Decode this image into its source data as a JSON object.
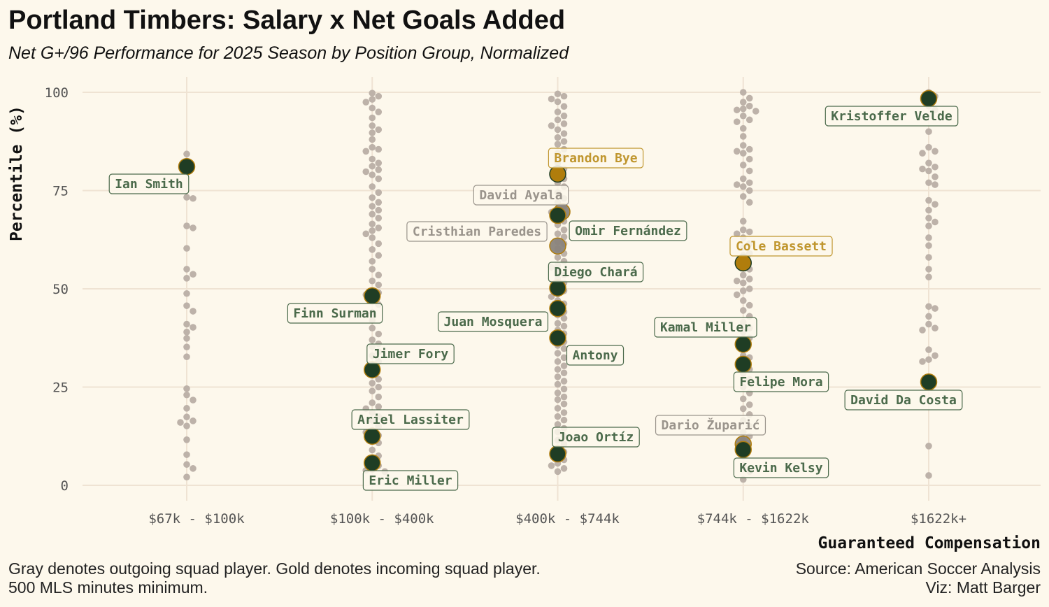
{
  "chart_data": {
    "type": "scatter",
    "title": "Portland Timbers: Salary x Net Goals Added",
    "subtitle": "Net G+/96 Performance for 2025 Season by Position Group, Normalized",
    "xlabel": "Guaranteed Compensation",
    "ylabel": "Percentile (%)",
    "categories": [
      "$67k - $100k",
      "$100k - $400k",
      "$400k - $744k",
      "$744k - $1622k",
      "$1622k+"
    ],
    "ylim": [
      0,
      100
    ],
    "yticks": [
      0,
      25,
      50,
      75,
      100
    ],
    "grid": true,
    "colors": {
      "background": "#fdf8ec",
      "league": "#bdb2a9",
      "current": "#1f3d24",
      "current_text": "#4b6a4b",
      "incoming": "#b07d0c",
      "incoming_text": "#c0962e",
      "outgoing": "#8a847c",
      "outgoing_text": "#9a948c",
      "grid": "#efe3d3"
    },
    "league_players": [
      [
        84.3,
        82.5,
        73.3,
        73,
        66,
        65.5,
        60.3,
        55,
        53.7,
        52.7,
        48.8,
        45.7,
        44.3,
        41,
        40.2,
        39,
        37.4,
        35.2,
        32.7,
        24.6,
        23,
        21.7,
        19.6,
        17.4,
        16.4,
        16,
        15.1,
        11.6,
        7.8,
        5.3,
        4.3,
        2.1
      ],
      [
        99.8,
        99,
        98.2,
        97.5,
        96,
        95,
        93.5,
        91.5,
        90.5,
        89.7,
        88,
        86,
        85.5,
        85,
        83,
        82,
        81.2,
        80.3,
        79.8,
        79,
        78,
        76,
        74.5,
        73.2,
        72,
        71,
        70,
        69,
        68,
        66.5,
        65.5,
        64.8,
        64,
        63,
        61.5,
        60,
        58.5,
        57,
        55,
        53.5,
        52,
        51,
        49.5,
        49,
        48.5,
        47,
        46,
        44,
        42,
        40,
        38.5,
        37,
        36,
        35.3,
        34,
        33,
        31.5,
        30.5,
        28,
        27,
        26,
        25,
        24,
        22.5,
        21,
        20,
        19.5,
        18.5,
        17.5,
        16.5,
        15,
        14,
        13.5,
        12.7,
        12,
        10.8,
        9,
        7.5,
        6.5,
        5,
        4,
        3.8,
        3.5
      ],
      [
        99.6,
        99,
        98.3,
        97.6,
        96.4,
        95,
        94,
        93,
        92,
        91.5,
        90.5,
        89.5,
        88.5,
        87.5,
        86.8,
        85.5,
        84.5,
        83.5,
        82,
        80.5,
        79.5,
        78,
        77,
        76,
        74.5,
        73,
        72,
        71,
        70,
        69.5,
        68,
        67.2,
        66.3,
        65,
        64,
        63.2,
        62,
        61.5,
        60.2,
        59,
        58,
        57,
        56,
        55.5,
        54.3,
        53.5,
        52.5,
        51.5,
        50.8,
        49.5,
        48.7,
        48,
        47,
        46.2,
        45.3,
        44.1,
        43.3,
        42.5,
        41.2,
        40.5,
        39.5,
        38.6,
        37.6,
        36.5,
        35.6,
        34.8,
        33.6,
        32.5,
        31.5,
        30.4,
        29.5,
        28.6,
        27.6,
        26.5,
        25.7,
        24.5,
        23.5,
        22.5,
        21.8,
        20.7,
        19.6,
        18.5,
        17.5,
        16.6,
        15.5,
        14.5,
        13.6,
        12.5,
        11.5,
        10.5,
        9.5,
        8.5,
        7.5,
        6.5,
        5.6,
        5,
        4.3,
        3.5
      ],
      [
        100,
        98.5,
        97.5,
        96.5,
        95.8,
        95.5,
        95.2,
        94,
        93,
        92.5,
        90.8,
        88.8,
        86.5,
        85.5,
        85,
        84.5,
        83,
        81.5,
        80,
        78,
        77,
        76.5,
        76,
        75,
        73.5,
        72,
        67.2,
        65,
        64.5,
        64,
        63,
        61.5,
        60.5,
        59,
        58.5,
        56.5,
        55,
        53.5,
        52.5,
        52,
        51.5,
        50,
        49.5,
        48.5,
        47,
        45.8,
        44.5,
        43,
        41.5,
        40,
        39,
        37.5,
        35.5,
        33,
        32.5,
        31,
        29.5,
        28.5,
        27,
        25,
        23.5,
        22,
        20.5,
        19.5,
        18,
        16.5,
        15,
        13.5,
        12.5,
        11.5,
        7.5,
        5,
        3.5,
        1.5
      ],
      [
        100,
        99,
        96.5,
        95.5,
        90,
        86,
        85,
        84.5,
        82,
        81,
        80.5,
        80,
        78.5,
        77,
        76.5,
        72.5,
        71.5,
        70,
        68,
        67,
        66,
        63,
        61,
        58,
        55,
        53,
        45.5,
        45,
        43,
        41,
        40,
        39.5,
        34.5,
        33,
        32,
        31.5,
        26.5,
        10,
        2.5
      ]
    ],
    "highlighted_players": [
      {
        "name": "Ian Smith",
        "category": "$67k - $100k",
        "percentile": 81.1,
        "status": "current"
      },
      {
        "name": "Finn Surman",
        "category": "$100k - $400k",
        "percentile": 48.2,
        "status": "current"
      },
      {
        "name": "Jimer Fory",
        "category": "$100k - $400k",
        "percentile": 29.4,
        "status": "current"
      },
      {
        "name": "Ariel Lassiter",
        "category": "$100k - $400k",
        "percentile": 12.5,
        "status": "current"
      },
      {
        "name": "Eric Miller",
        "category": "$100k - $400k",
        "percentile": 5.7,
        "status": "current"
      },
      {
        "name": "Brandon Bye",
        "category": "$400k - $744k",
        "percentile": 79.2,
        "status": "incoming"
      },
      {
        "name": "David Ayala",
        "category": "$400k - $744k",
        "percentile": 69.6,
        "status": "outgoing"
      },
      {
        "name": "Omir Fernández",
        "category": "$400k - $744k",
        "percentile": 68.7,
        "status": "current"
      },
      {
        "name": "Cristhian Paredes",
        "category": "$400k - $744k",
        "percentile": 60.9,
        "status": "outgoing"
      },
      {
        "name": "Diego Chará",
        "category": "$400k - $744k",
        "percentile": 50.2,
        "status": "current"
      },
      {
        "name": "Juan Mosquera",
        "category": "$400k - $744k",
        "percentile": 45.0,
        "status": "current"
      },
      {
        "name": "Antony",
        "category": "$400k - $744k",
        "percentile": 37.5,
        "status": "current"
      },
      {
        "name": "Joao Ortíz",
        "category": "$400k - $744k",
        "percentile": 8.0,
        "status": "current"
      },
      {
        "name": "Cole Bassett",
        "category": "$744k - $1622k",
        "percentile": 56.6,
        "status": "incoming"
      },
      {
        "name": "Kamal Miller",
        "category": "$744k - $1622k",
        "percentile": 35.9,
        "status": "current"
      },
      {
        "name": "Felipe Mora",
        "category": "$744k - $1622k",
        "percentile": 30.8,
        "status": "current"
      },
      {
        "name": "Dario Župarić",
        "category": "$744k - $1622k",
        "percentile": 10.5,
        "status": "outgoing"
      },
      {
        "name": "Kevin Kelsy",
        "category": "$744k - $1622k",
        "percentile": 9.1,
        "status": "current"
      },
      {
        "name": "Kristoffer Velde",
        "category": "$1622k+",
        "percentile": 98.4,
        "status": "current"
      },
      {
        "name": "David Da Costa",
        "category": "$1622k+",
        "percentile": 26.3,
        "status": "current"
      }
    ]
  },
  "caption": {
    "note_line1": "Gray denotes outgoing squad player. Gold denotes incoming squad player.",
    "note_line2": "500 MLS minutes minimum.",
    "source": "Source: American Soccer Analysis",
    "viz": "Viz: Matt Barger"
  }
}
